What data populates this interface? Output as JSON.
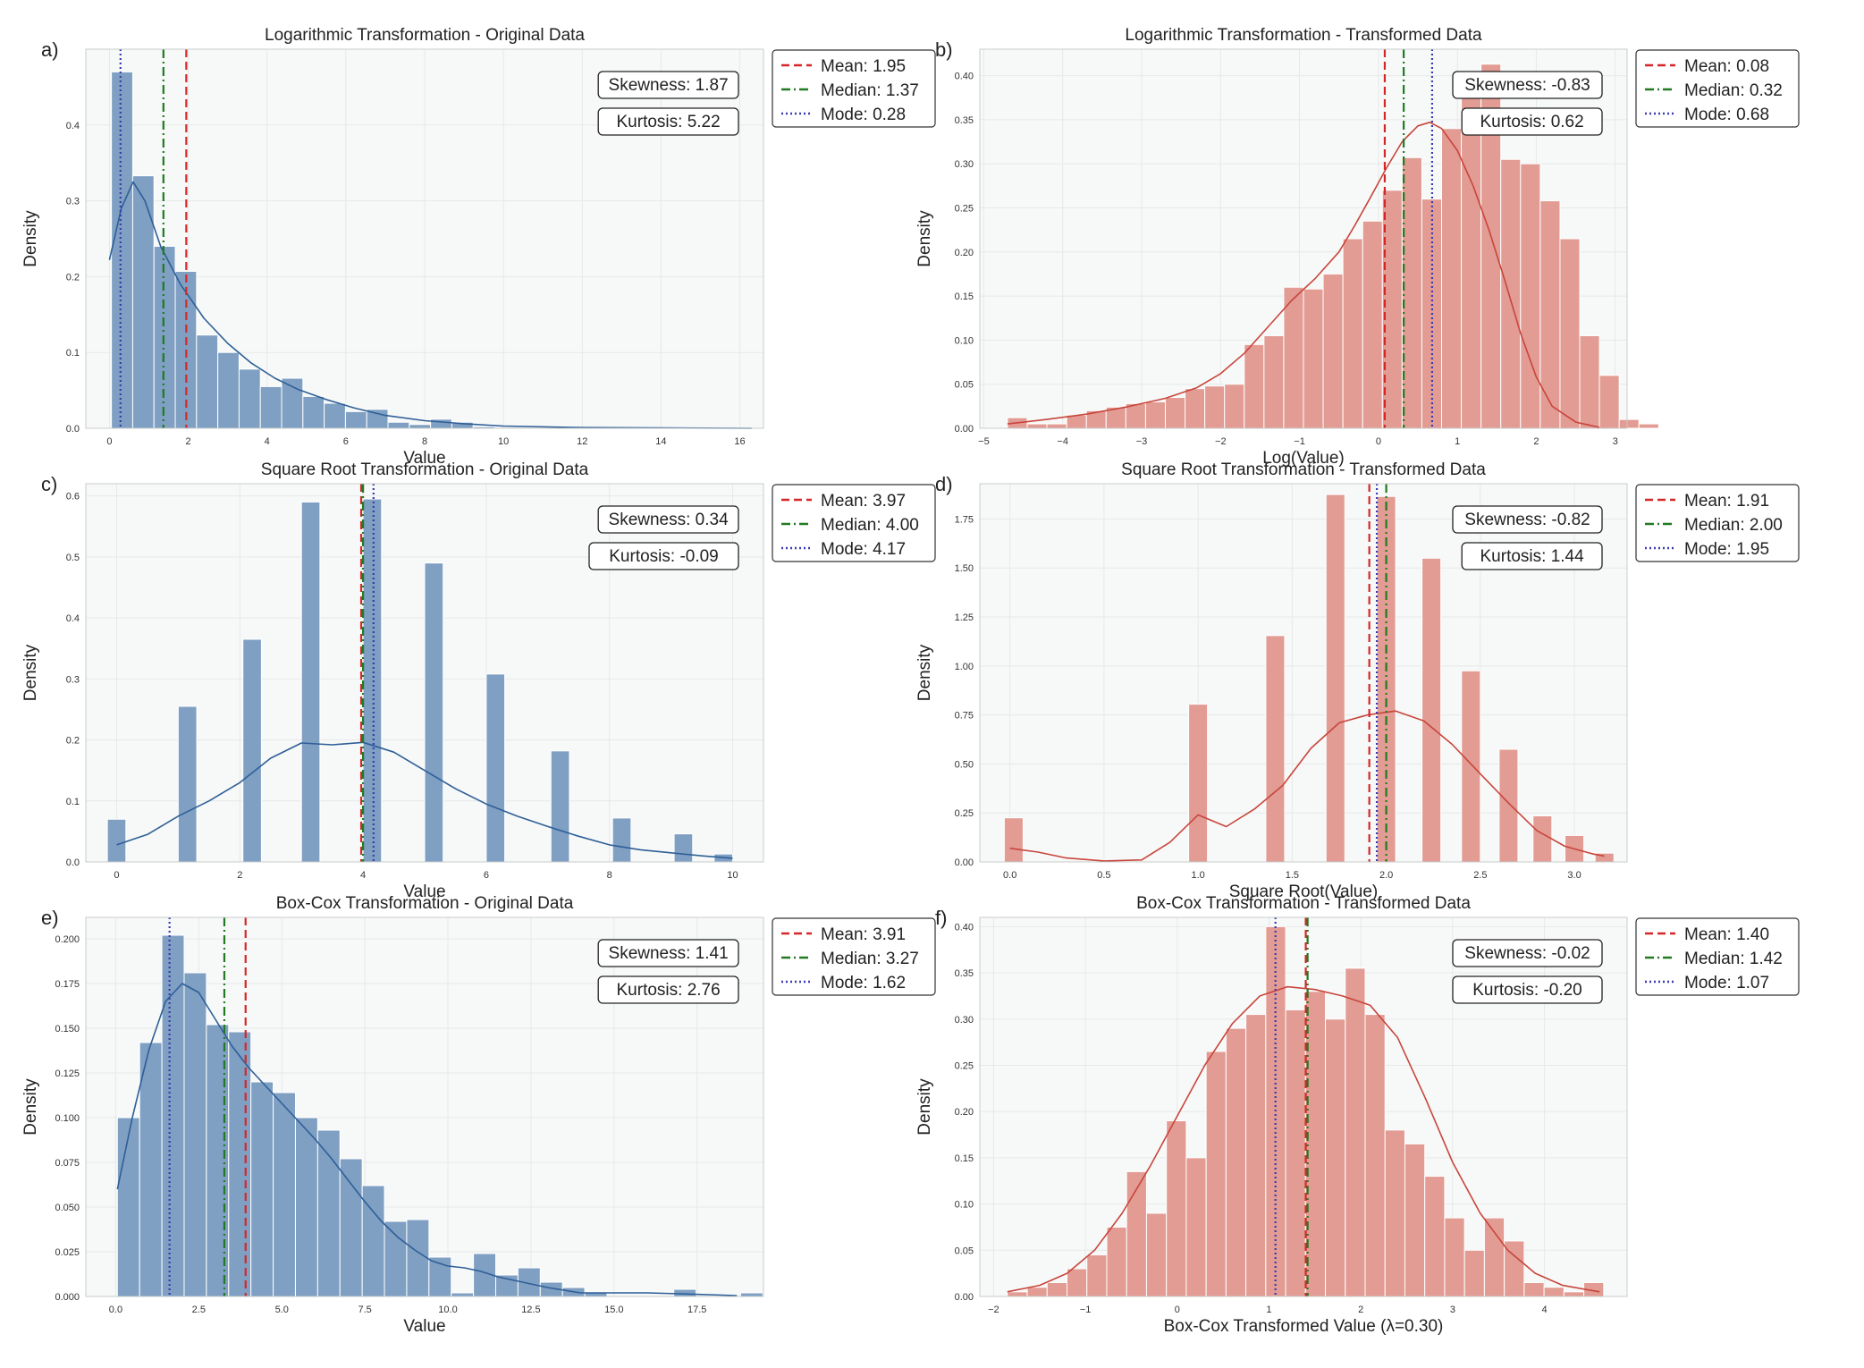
{
  "colors": {
    "blue_bar": "#7f9fc3",
    "blue_line": "#2f5f97",
    "red_bar": "#e29c94",
    "red_line": "#c8453c",
    "mean": "#d62728",
    "median": "#217a21",
    "mode": "#3a3ab0",
    "panel_bg": "#f7f9f8"
  },
  "legend_labels": {
    "mean": "Mean",
    "median": "Median",
    "mode": "Mode"
  },
  "chart_data": [
    {
      "panel": "a)",
      "type": "bar",
      "color": "blue",
      "title": "Logarithmic Transformation - Original Data",
      "xlabel": "Value",
      "ylabel": "Density",
      "xlim": [
        -0.6,
        16.6
      ],
      "ylim": [
        0,
        0.5
      ],
      "xticks": [
        0,
        2,
        4,
        6,
        8,
        10,
        12,
        14,
        16
      ],
      "xtick_labels": [
        "0",
        "2",
        "4",
        "6",
        "8",
        "10",
        "12",
        "14",
        "16"
      ],
      "yticks": [
        0,
        0.1,
        0.2,
        0.3,
        0.4
      ],
      "ytick_labels": [
        "0.0",
        "0.1",
        "0.2",
        "0.3",
        "0.4"
      ],
      "bin_start": 0.05,
      "bin_width": 0.54,
      "values": [
        0.47,
        0.333,
        0.24,
        0.207,
        0.123,
        0.1,
        0.078,
        0.055,
        0.066,
        0.042,
        0.033,
        0.022,
        0.025,
        0.008,
        0.005,
        0.012,
        0.008,
        0.002
      ],
      "kde": [
        [
          0,
          0.222
        ],
        [
          0.3,
          0.29
        ],
        [
          0.6,
          0.325
        ],
        [
          0.9,
          0.3
        ],
        [
          1.3,
          0.24
        ],
        [
          1.8,
          0.19
        ],
        [
          2.4,
          0.145
        ],
        [
          3,
          0.112
        ],
        [
          3.6,
          0.086
        ],
        [
          4.2,
          0.066
        ],
        [
          4.8,
          0.051
        ],
        [
          5.5,
          0.038
        ],
        [
          6.2,
          0.027
        ],
        [
          7,
          0.017
        ],
        [
          8,
          0.01
        ],
        [
          9,
          0.006
        ],
        [
          10,
          0.003
        ],
        [
          12,
          0.001
        ],
        [
          14,
          0.0005
        ],
        [
          16.3,
          0
        ]
      ],
      "stats": {
        "skewness": "Skewness: 1.87",
        "kurtosis": "Kurtosis: 5.22"
      },
      "lines": {
        "mean": 1.95,
        "median": 1.37,
        "mode": 0.28
      },
      "legend": {
        "mean": "Mean: 1.95",
        "median": "Median: 1.37",
        "mode": "Mode: 0.28"
      }
    },
    {
      "panel": "b)",
      "type": "bar",
      "color": "red",
      "title": "Logarithmic Transformation - Transformed Data",
      "xlabel": "Log(Value)",
      "ylabel": "Density",
      "xlim": [
        -5.05,
        3.15
      ],
      "ylim": [
        0,
        0.43
      ],
      "xticks": [
        -5,
        -4,
        -3,
        -2,
        -1,
        0,
        1,
        2,
        3
      ],
      "xtick_labels": [
        "−5",
        "−4",
        "−3",
        "−2",
        "−1",
        "0",
        "1",
        "2",
        "3"
      ],
      "yticks": [
        0,
        0.05,
        0.1,
        0.15,
        0.2,
        0.25,
        0.3,
        0.35,
        0.4
      ],
      "ytick_labels": [
        "0.00",
        "0.05",
        "0.10",
        "0.15",
        "0.20",
        "0.25",
        "0.30",
        "0.35",
        "0.40"
      ],
      "bin_start": -4.7,
      "bin_width": 0.25,
      "values": [
        0.012,
        0.005,
        0.005,
        0.015,
        0.02,
        0.024,
        0.028,
        0.03,
        0.035,
        0.045,
        0.048,
        0.05,
        0.095,
        0.105,
        0.16,
        0.158,
        0.175,
        0.215,
        0.235,
        0.27,
        0.307,
        0.26,
        0.34,
        0.385,
        0.413,
        0.305,
        0.3,
        0.258,
        0.215,
        0.105,
        0.06,
        0.01,
        0.005
      ],
      "kde": [
        [
          -4.7,
          0.005
        ],
        [
          -4.2,
          0.01
        ],
        [
          -3.7,
          0.016
        ],
        [
          -3.2,
          0.024
        ],
        [
          -2.7,
          0.034
        ],
        [
          -2.3,
          0.046
        ],
        [
          -2,
          0.062
        ],
        [
          -1.7,
          0.085
        ],
        [
          -1.4,
          0.115
        ],
        [
          -1.1,
          0.145
        ],
        [
          -0.8,
          0.17
        ],
        [
          -0.5,
          0.2
        ],
        [
          -0.3,
          0.23
        ],
        [
          -0.1,
          0.262
        ],
        [
          0.1,
          0.295
        ],
        [
          0.3,
          0.325
        ],
        [
          0.5,
          0.343
        ],
        [
          0.65,
          0.347
        ],
        [
          0.8,
          0.34
        ],
        [
          1,
          0.315
        ],
        [
          1.2,
          0.275
        ],
        [
          1.4,
          0.225
        ],
        [
          1.6,
          0.168
        ],
        [
          1.8,
          0.108
        ],
        [
          2,
          0.058
        ],
        [
          2.2,
          0.025
        ],
        [
          2.5,
          0.007
        ],
        [
          2.8,
          0.001
        ]
      ],
      "stats": {
        "skewness": "Skewness: -0.83",
        "kurtosis": "Kurtosis: 0.62"
      },
      "lines": {
        "mean": 0.08,
        "median": 0.32,
        "mode": 0.68
      },
      "legend": {
        "mean": "Mean: 0.08",
        "median": "Median: 0.32",
        "mode": "Mode: 0.68"
      }
    },
    {
      "panel": "c)",
      "type": "bar",
      "color": "blue",
      "title": "Square Root Transformation - Original Data",
      "xlabel": "Value",
      "ylabel": "Density",
      "xlim": [
        -0.5,
        10.5
      ],
      "ylim": [
        0,
        0.62
      ],
      "xticks": [
        0,
        2,
        4,
        6,
        8,
        10
      ],
      "xtick_labels": [
        "0",
        "2",
        "4",
        "6",
        "8",
        "10"
      ],
      "yticks": [
        0,
        0.1,
        0.2,
        0.3,
        0.4,
        0.5,
        0.6
      ],
      "ytick_labels": [
        "0.0",
        "0.1",
        "0.2",
        "0.3",
        "0.4",
        "0.5",
        "0.6"
      ],
      "bars": [
        [
          0,
          0.07
        ],
        [
          1.15,
          0.255
        ],
        [
          2.2,
          0.365
        ],
        [
          3.15,
          0.59
        ],
        [
          4.15,
          0.595
        ],
        [
          5.15,
          0.49
        ],
        [
          6.15,
          0.308
        ],
        [
          7.2,
          0.182
        ],
        [
          8.2,
          0.072
        ],
        [
          9.2,
          0.046
        ],
        [
          9.85,
          0.013
        ]
      ],
      "bar_width": 0.3,
      "kde": [
        [
          0,
          0.028
        ],
        [
          0.5,
          0.045
        ],
        [
          1,
          0.075
        ],
        [
          1.5,
          0.1
        ],
        [
          2,
          0.13
        ],
        [
          2.5,
          0.17
        ],
        [
          3,
          0.195
        ],
        [
          3.5,
          0.192
        ],
        [
          4,
          0.196
        ],
        [
          4.5,
          0.18
        ],
        [
          5,
          0.15
        ],
        [
          5.5,
          0.12
        ],
        [
          6,
          0.095
        ],
        [
          6.5,
          0.075
        ],
        [
          7,
          0.058
        ],
        [
          7.5,
          0.042
        ],
        [
          8,
          0.028
        ],
        [
          8.5,
          0.02
        ],
        [
          9,
          0.015
        ],
        [
          9.5,
          0.01
        ],
        [
          10,
          0.006
        ]
      ],
      "stats": {
        "skewness": "Skewness: 0.34",
        "kurtosis": "Kurtosis: -0.09"
      },
      "lines": {
        "mean": 3.97,
        "median": 4.0,
        "mode": 4.17
      },
      "legend": {
        "mean": "Mean: 3.97",
        "median": "Median: 4.00",
        "mode": "Mode: 4.17"
      }
    },
    {
      "panel": "d)",
      "type": "bar",
      "color": "red",
      "title": "Square Root Transformation - Transformed Data",
      "xlabel": "Square Root(Value)",
      "ylabel": "Density",
      "xlim": [
        -0.16,
        3.28
      ],
      "ylim": [
        0,
        1.93
      ],
      "xticks": [
        0,
        0.5,
        1,
        1.5,
        2,
        2.5,
        3
      ],
      "xtick_labels": [
        "0.0",
        "0.5",
        "1.0",
        "1.5",
        "2.0",
        "2.5",
        "3.0"
      ],
      "yticks": [
        0,
        0.25,
        0.5,
        0.75,
        1,
        1.25,
        1.5,
        1.75
      ],
      "ytick_labels": [
        "0.00",
        "0.25",
        "0.50",
        "0.75",
        "1.00",
        "1.25",
        "1.50",
        "1.75"
      ],
      "bars": [
        [
          0.02,
          0.225
        ],
        [
          1.0,
          0.805
        ],
        [
          1.41,
          1.155
        ],
        [
          1.73,
          1.875
        ],
        [
          2.0,
          1.865
        ],
        [
          2.24,
          1.55
        ],
        [
          2.45,
          0.975
        ],
        [
          2.65,
          0.575
        ],
        [
          2.83,
          0.235
        ],
        [
          3.0,
          0.135
        ],
        [
          3.16,
          0.045
        ]
      ],
      "bar_width": 0.1,
      "kde": [
        [
          0,
          0.07
        ],
        [
          0.15,
          0.05
        ],
        [
          0.3,
          0.02
        ],
        [
          0.5,
          0.005
        ],
        [
          0.7,
          0.01
        ],
        [
          0.85,
          0.1
        ],
        [
          1,
          0.24
        ],
        [
          1.15,
          0.18
        ],
        [
          1.3,
          0.27
        ],
        [
          1.45,
          0.39
        ],
        [
          1.6,
          0.58
        ],
        [
          1.75,
          0.71
        ],
        [
          1.9,
          0.75
        ],
        [
          2.05,
          0.77
        ],
        [
          2.2,
          0.72
        ],
        [
          2.35,
          0.6
        ],
        [
          2.5,
          0.45
        ],
        [
          2.65,
          0.3
        ],
        [
          2.8,
          0.16
        ],
        [
          2.95,
          0.08
        ],
        [
          3.1,
          0.04
        ],
        [
          3.16,
          0.03
        ]
      ],
      "stats": {
        "skewness": "Skewness: -0.82",
        "kurtosis": "Kurtosis: 1.44"
      },
      "lines": {
        "mean": 1.91,
        "median": 2.0,
        "mode": 1.95
      },
      "legend": {
        "mean": "Mean: 1.91",
        "median": "Median: 2.00",
        "mode": "Mode: 1.95"
      }
    },
    {
      "panel": "e)",
      "type": "bar",
      "color": "blue",
      "title": "Box-Cox Transformation - Original Data",
      "xlabel": "Value",
      "ylabel": "Density",
      "xlim": [
        -0.9,
        19.5
      ],
      "ylim": [
        0,
        0.212
      ],
      "xticks": [
        0,
        2.5,
        5,
        7.5,
        10,
        12.5,
        15,
        17.5
      ],
      "xtick_labels": [
        "0.0",
        "2.5",
        "5.0",
        "7.5",
        "10.0",
        "12.5",
        "15.0",
        "17.5"
      ],
      "yticks": [
        0,
        0.025,
        0.05,
        0.075,
        0.1,
        0.125,
        0.15,
        0.175,
        0.2
      ],
      "ytick_labels": [
        "0.000",
        "0.025",
        "0.050",
        "0.075",
        "0.100",
        "0.125",
        "0.150",
        "0.175",
        "0.200"
      ],
      "bin_start": 0.05,
      "bin_width": 0.67,
      "values": [
        0.1,
        0.142,
        0.202,
        0.181,
        0.152,
        0.148,
        0.12,
        0.114,
        0.1,
        0.093,
        0.077,
        0.062,
        0.042,
        0.043,
        0.022,
        0.002,
        0.024,
        0.012,
        0.016,
        0.008,
        0.005,
        0.002,
        0,
        0,
        0,
        0.004,
        0,
        0,
        0.002
      ],
      "kde": [
        [
          0.05,
          0.06
        ],
        [
          0.5,
          0.1
        ],
        [
          1,
          0.138
        ],
        [
          1.5,
          0.165
        ],
        [
          2,
          0.175
        ],
        [
          2.5,
          0.17
        ],
        [
          3,
          0.155
        ],
        [
          3.5,
          0.14
        ],
        [
          4,
          0.128
        ],
        [
          4.5,
          0.118
        ],
        [
          5,
          0.108
        ],
        [
          5.5,
          0.098
        ],
        [
          6,
          0.088
        ],
        [
          6.5,
          0.077
        ],
        [
          7,
          0.065
        ],
        [
          7.5,
          0.053
        ],
        [
          8,
          0.042
        ],
        [
          8.5,
          0.033
        ],
        [
          9,
          0.026
        ],
        [
          9.5,
          0.02
        ],
        [
          10,
          0.017
        ],
        [
          10.5,
          0.016
        ],
        [
          11,
          0.014
        ],
        [
          11.5,
          0.011
        ],
        [
          12,
          0.009
        ],
        [
          13,
          0.005
        ],
        [
          14,
          0.002
        ],
        [
          15,
          0.002
        ],
        [
          16,
          0.002
        ],
        [
          17,
          0.0015
        ],
        [
          18.7,
          0.0005
        ]
      ],
      "stats": {
        "skewness": "Skewness: 1.41",
        "kurtosis": "Kurtosis: 2.76"
      },
      "lines": {
        "mean": 3.91,
        "median": 3.27,
        "mode": 1.62
      },
      "legend": {
        "mean": "Mean: 3.91",
        "median": "Median: 3.27",
        "mode": "Mode: 1.62"
      }
    },
    {
      "panel": "f)",
      "type": "bar",
      "color": "red",
      "title": "Box-Cox Transformation - Transformed Data",
      "xlabel": "Box-Cox Transformed Value (λ=0.30)",
      "ylabel": "Density",
      "xlim": [
        -2.15,
        4.9
      ],
      "ylim": [
        0,
        0.41
      ],
      "xticks": [
        -2,
        -1,
        0,
        1,
        2,
        3,
        4
      ],
      "xtick_labels": [
        "−2",
        "−1",
        "0",
        "1",
        "2",
        "3",
        "4"
      ],
      "yticks": [
        0,
        0.05,
        0.1,
        0.15,
        0.2,
        0.25,
        0.3,
        0.35,
        0.4
      ],
      "ytick_labels": [
        "0.00",
        "0.05",
        "0.10",
        "0.15",
        "0.20",
        "0.25",
        "0.30",
        "0.35",
        "0.40"
      ],
      "bin_start": -1.85,
      "bin_width": 0.2165,
      "values": [
        0.005,
        0.01,
        0.015,
        0.03,
        0.045,
        0.075,
        0.135,
        0.09,
        0.19,
        0.15,
        0.265,
        0.29,
        0.305,
        0.4,
        0.31,
        0.33,
        0.3,
        0.355,
        0.305,
        0.18,
        0.165,
        0.13,
        0.085,
        0.05,
        0.085,
        0.06,
        0.015,
        0.01,
        0.005,
        0.015
      ],
      "kde": [
        [
          -1.85,
          0.005
        ],
        [
          -1.5,
          0.012
        ],
        [
          -1.2,
          0.025
        ],
        [
          -0.9,
          0.05
        ],
        [
          -0.6,
          0.09
        ],
        [
          -0.3,
          0.14
        ],
        [
          0,
          0.195
        ],
        [
          0.3,
          0.25
        ],
        [
          0.6,
          0.295
        ],
        [
          0.9,
          0.325
        ],
        [
          1.2,
          0.335
        ],
        [
          1.5,
          0.332
        ],
        [
          1.8,
          0.325
        ],
        [
          2.1,
          0.315
        ],
        [
          2.4,
          0.28
        ],
        [
          2.7,
          0.215
        ],
        [
          3,
          0.145
        ],
        [
          3.3,
          0.09
        ],
        [
          3.6,
          0.05
        ],
        [
          3.9,
          0.025
        ],
        [
          4.2,
          0.012
        ],
        [
          4.6,
          0.005
        ]
      ],
      "stats": {
        "skewness": "Skewness: -0.02",
        "kurtosis": "Kurtosis: -0.20"
      },
      "lines": {
        "mean": 1.4,
        "median": 1.42,
        "mode": 1.07
      },
      "legend": {
        "mean": "Mean: 1.40",
        "median": "Median: 1.42",
        "mode": "Mode: 1.07"
      }
    }
  ]
}
